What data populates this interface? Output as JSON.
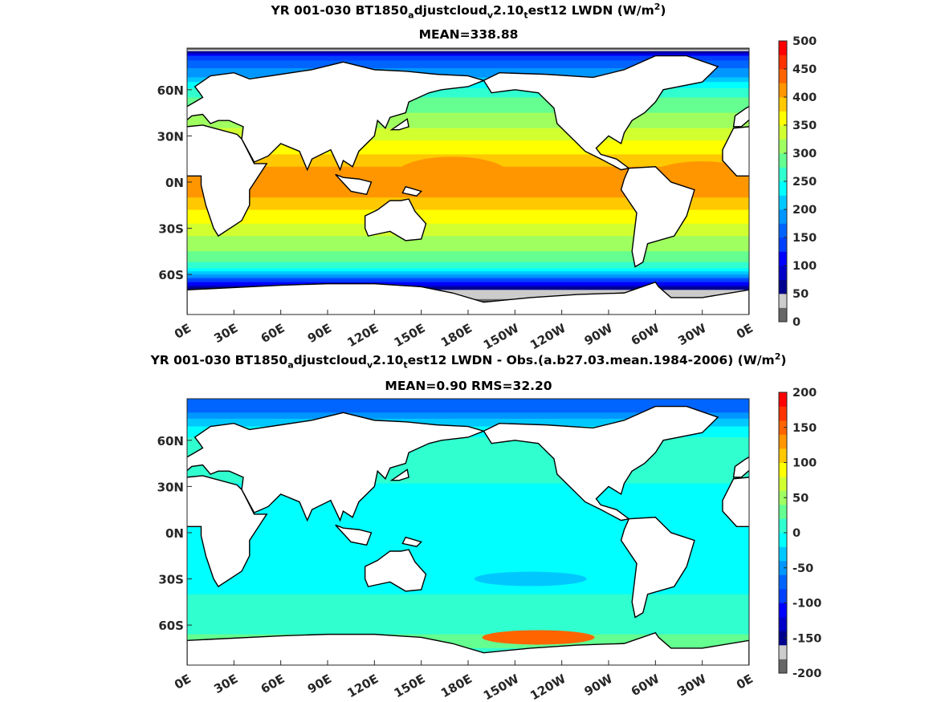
{
  "panels": [
    {
      "title_parts": [
        "YR 001-030 BT1850",
        "a",
        "djustcloud",
        "v",
        "2.10",
        "t",
        "est12 LWDN (W/m",
        "2",
        ")"
      ],
      "stats": "MEAN=338.88",
      "colorbar": {
        "ticks": [
          "500",
          "450",
          "400",
          "350",
          "300",
          "250",
          "200",
          "150",
          "100",
          "50",
          "0"
        ],
        "range": [
          0,
          500
        ],
        "step": 25
      },
      "zonal_profile": {
        "lat": [
          87,
          82,
          75,
          68,
          60,
          50,
          40,
          30,
          20,
          10,
          0,
          -10,
          -20,
          -30,
          -40,
          -50,
          -56,
          -60,
          -64,
          -68,
          -72,
          -86
        ],
        "value": [
          10,
          130,
          170,
          200,
          260,
          290,
          310,
          340,
          370,
          400,
          410,
          400,
          370,
          340,
          310,
          290,
          250,
          200,
          140,
          80,
          30,
          10
        ]
      },
      "anomalies": [
        {
          "lon": 170,
          "lat": 5,
          "value": 420
        },
        {
          "lon": 330,
          "lat": 2,
          "value": 410
        }
      ]
    },
    {
      "title_parts": [
        "YR 001-030 BT1850",
        "a",
        "djustcloud",
        "v",
        "2.10",
        "t",
        "est12 LWDN - Obs.(a.b27.03.mean.1984-2006) (W/m",
        "2",
        ")"
      ],
      "stats": "MEAN=0.90 RMS=32.20",
      "colorbar": {
        "ticks": [
          "200",
          "150",
          "100",
          "50",
          "0",
          "-50",
          "-100",
          "-150",
          "-200"
        ],
        "range": [
          -200,
          200
        ],
        "step": 20
      },
      "zonal_profile": {
        "lat": [
          87,
          80,
          72,
          62,
          50,
          40,
          30,
          20,
          10,
          0,
          -10,
          -20,
          -30,
          -40,
          -50,
          -60,
          -66,
          -70,
          -86
        ],
        "value": [
          -60,
          -70,
          -30,
          0,
          10,
          15,
          -5,
          -10,
          -10,
          -5,
          -10,
          -15,
          -10,
          0,
          5,
          10,
          20,
          30,
          0
        ]
      },
      "anomalies": [
        {
          "lon": 225,
          "lat": -68,
          "value": 150
        },
        {
          "lon": 220,
          "lat": -30,
          "value": -30
        }
      ]
    }
  ],
  "axes": {
    "xticks": [
      "0E",
      "30E",
      "60E",
      "90E",
      "120E",
      "150E",
      "180E",
      "150W",
      "120W",
      "90W",
      "60W",
      "30W",
      "0E"
    ],
    "yticks": [
      "60N",
      "30N",
      "0N",
      "30S",
      "60S"
    ],
    "ytick_values": [
      60,
      30,
      0,
      -30,
      -60
    ],
    "lon_range": [
      0,
      360
    ],
    "lat_range": [
      -86,
      87
    ]
  },
  "colors": {
    "colormap": [
      "#666666",
      "#cccccc",
      "#00008f",
      "#0000c8",
      "#0000ff",
      "#0040ff",
      "#0064ff",
      "#0096ff",
      "#00c8ff",
      "#00ffff",
      "#30ffd0",
      "#64ff90",
      "#a0ff60",
      "#d2ff30",
      "#ffff00",
      "#ffc800",
      "#ff9600",
      "#ff6400",
      "#ff3200",
      "#ff0000"
    ],
    "land": "#ffffff",
    "coast": "#000000"
  }
}
